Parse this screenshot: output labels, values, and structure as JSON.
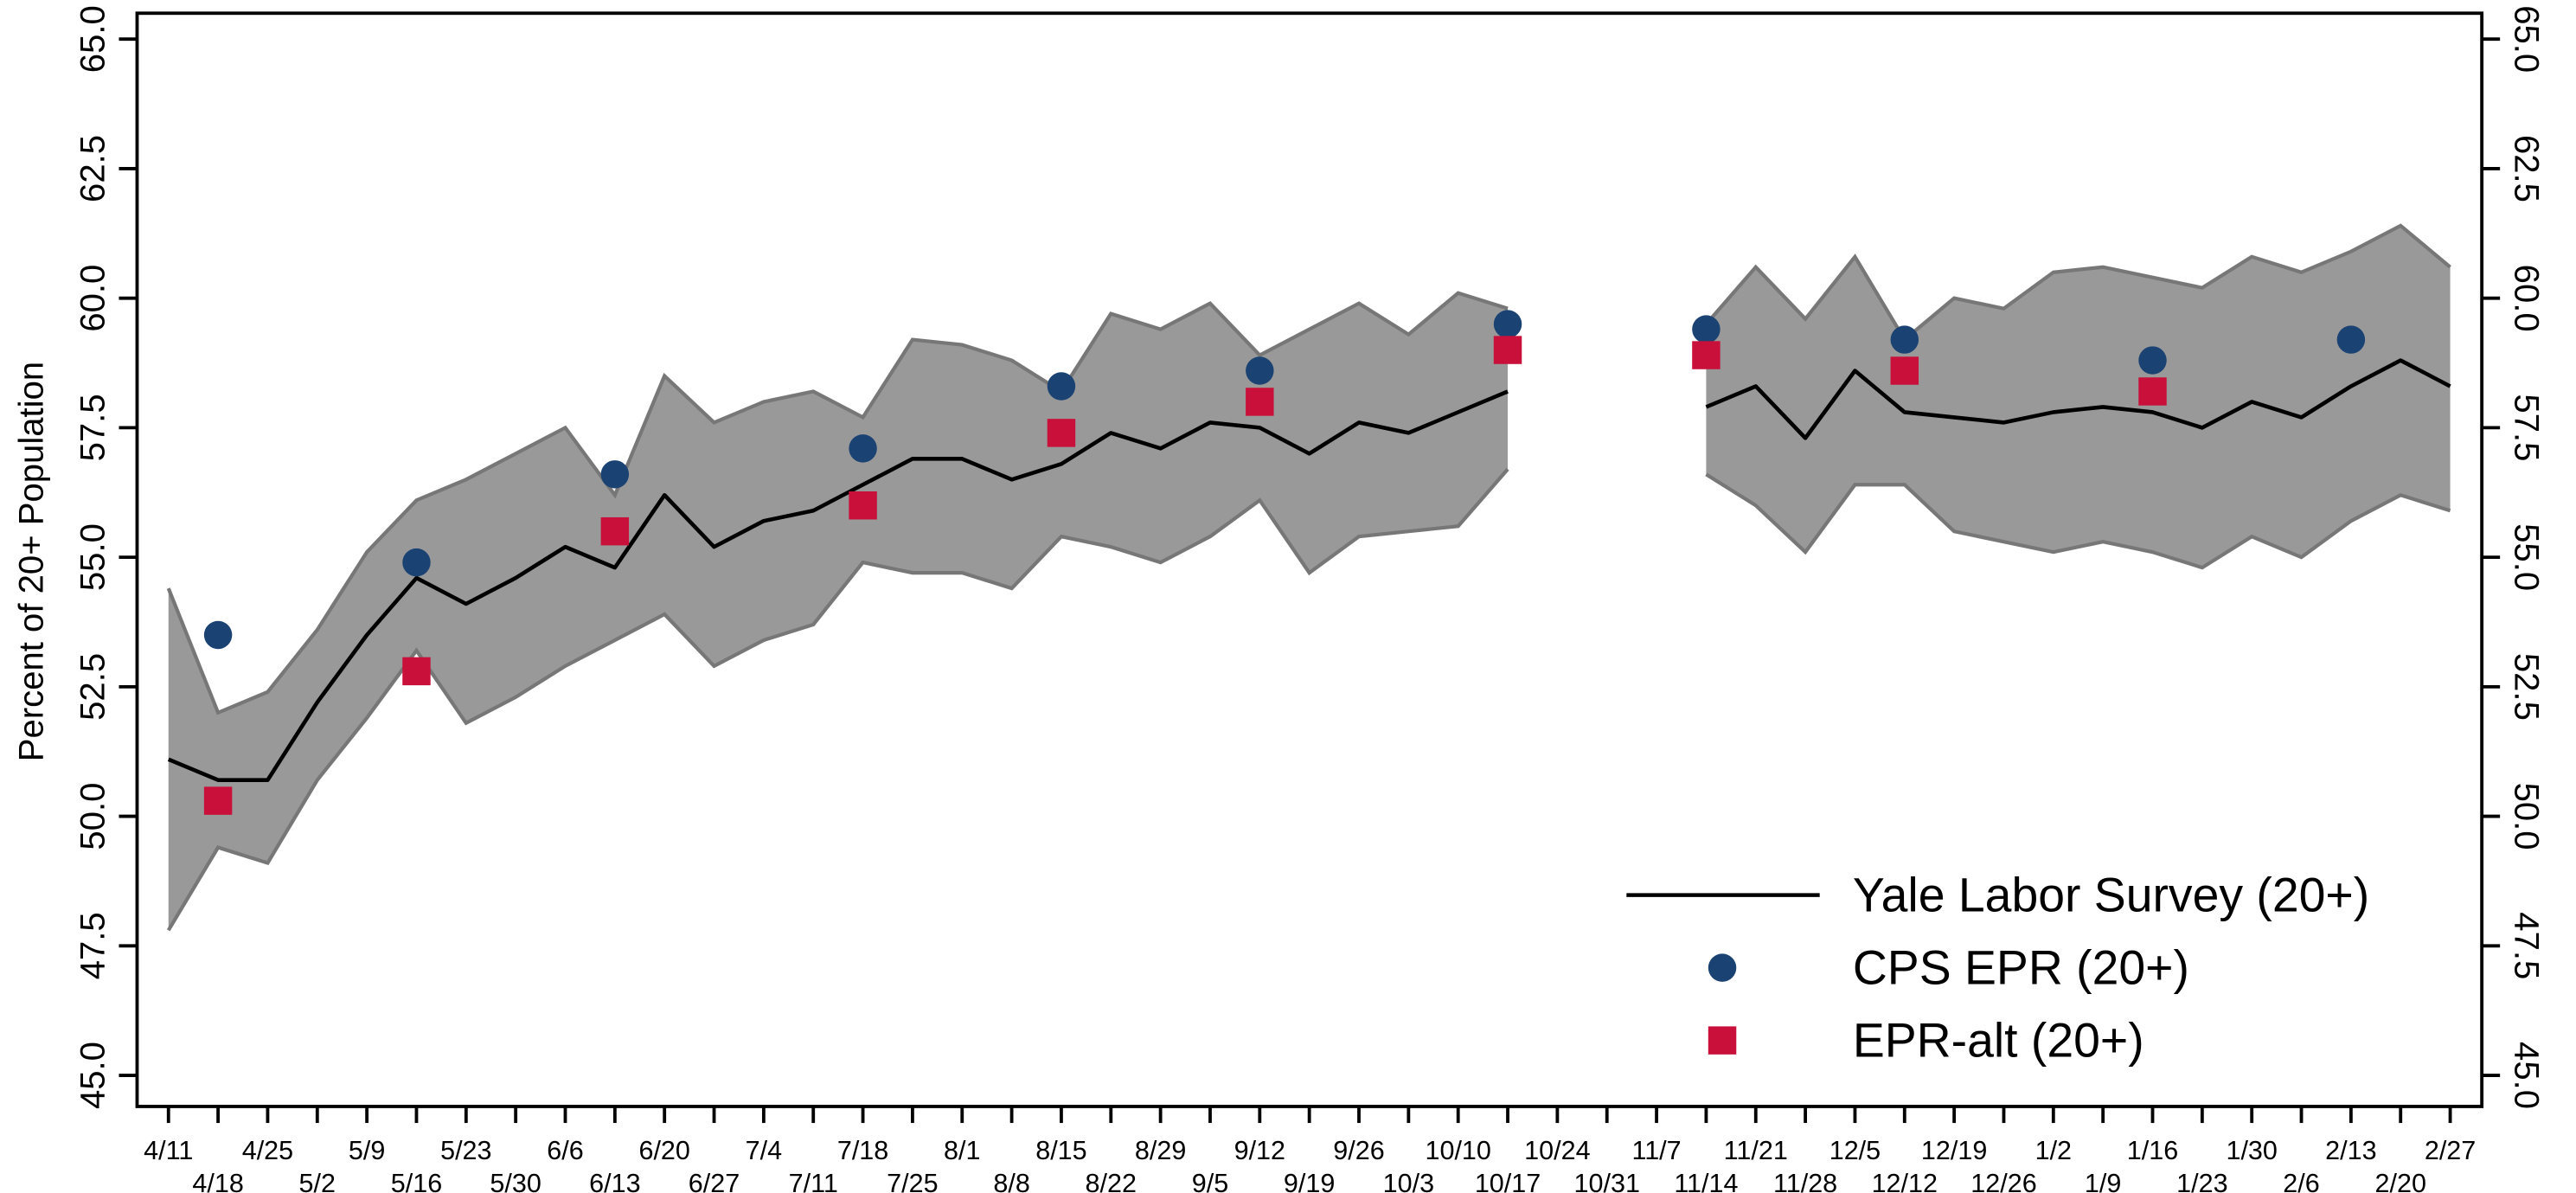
{
  "chart_data": {
    "type": "line",
    "y_label": "Percent of 20+ Population",
    "categories": [
      "4/11",
      "4/18",
      "4/25",
      "5/2",
      "5/9",
      "5/16",
      "5/23",
      "5/30",
      "6/6",
      "6/13",
      "6/20",
      "6/27",
      "7/4",
      "7/11",
      "7/18",
      "7/25",
      "8/1",
      "8/8",
      "8/15",
      "8/22",
      "8/29",
      "9/5",
      "9/12",
      "9/19",
      "9/26",
      "10/3",
      "10/10",
      "10/17",
      "10/24",
      "10/31",
      "11/7",
      "11/14",
      "11/21",
      "11/28",
      "12/5",
      "12/12",
      "12/19",
      "12/26",
      "1/2",
      "1/9",
      "1/16",
      "1/23",
      "1/30",
      "2/6",
      "2/13",
      "2/20",
      "2/27"
    ],
    "band": {
      "color": "#999999",
      "edge_color": "#777777",
      "upper": [
        54.4,
        52.0,
        52.4,
        53.6,
        55.1,
        56.1,
        56.5,
        57.0,
        57.5,
        56.2,
        58.5,
        57.6,
        58.0,
        58.2,
        57.7,
        59.2,
        59.1,
        58.8,
        58.2,
        59.7,
        59.4,
        59.9,
        58.9,
        59.4,
        59.9,
        59.3,
        60.1,
        59.8,
        null,
        null,
        null,
        59.5,
        60.6,
        59.6,
        60.8,
        59.2,
        60.0,
        59.8,
        60.5,
        60.6,
        60.4,
        60.2,
        60.8,
        60.5,
        60.9,
        61.4,
        60.6
      ],
      "lower": [
        47.8,
        49.4,
        49.1,
        50.7,
        51.9,
        53.2,
        51.8,
        52.3,
        52.9,
        53.4,
        53.9,
        52.9,
        53.4,
        53.7,
        54.9,
        54.7,
        54.7,
        54.4,
        55.4,
        55.2,
        54.9,
        55.4,
        56.1,
        54.7,
        55.4,
        55.5,
        55.6,
        56.7,
        null,
        null,
        null,
        56.6,
        56.0,
        55.1,
        56.4,
        56.4,
        55.5,
        55.3,
        55.1,
        55.3,
        55.1,
        54.8,
        55.4,
        55.0,
        55.7,
        56.2,
        55.9
      ]
    },
    "series": [
      {
        "name": "Yale Labor Survey (20+)",
        "color": "#000000",
        "marker": "line",
        "values": [
          51.1,
          50.7,
          50.7,
          52.2,
          53.5,
          54.6,
          54.1,
          54.6,
          55.2,
          54.8,
          56.2,
          55.2,
          55.7,
          55.9,
          56.4,
          56.9,
          56.9,
          56.5,
          56.8,
          57.4,
          57.1,
          57.6,
          57.5,
          57.0,
          57.6,
          57.4,
          57.8,
          58.2,
          null,
          null,
          null,
          57.9,
          58.3,
          57.3,
          58.6,
          57.8,
          57.7,
          57.6,
          57.8,
          57.9,
          57.8,
          57.5,
          58.0,
          57.7,
          58.3,
          58.8,
          58.3
        ]
      },
      {
        "name": "CPS EPR (20+)",
        "color": "#1a4272",
        "marker": "circle",
        "values": [
          null,
          53.5,
          null,
          null,
          null,
          54.9,
          null,
          null,
          null,
          56.6,
          null,
          null,
          null,
          null,
          57.1,
          null,
          null,
          null,
          58.3,
          null,
          null,
          null,
          58.6,
          null,
          null,
          null,
          null,
          59.5,
          null,
          null,
          null,
          59.4,
          null,
          null,
          null,
          59.2,
          null,
          null,
          null,
          null,
          58.8,
          null,
          null,
          null,
          59.2,
          null,
          null
        ]
      },
      {
        "name": "EPR-alt (20+)",
        "color": "#c8103a",
        "marker": "square",
        "values": [
          null,
          50.3,
          null,
          null,
          null,
          52.8,
          null,
          null,
          null,
          55.5,
          null,
          null,
          null,
          null,
          56.0,
          null,
          null,
          null,
          57.4,
          null,
          null,
          null,
          58.0,
          null,
          null,
          null,
          null,
          59.0,
          null,
          null,
          null,
          58.9,
          null,
          null,
          null,
          58.6,
          null,
          null,
          null,
          null,
          58.2,
          null,
          null,
          null,
          null,
          null,
          null
        ]
      }
    ],
    "ylim": [
      44.4,
      65.5
    ],
    "yticks": [
      {
        "value": 45,
        "label": "45.0"
      },
      47.5,
      {
        "value": 50,
        "label": "50.0"
      },
      52.5,
      {
        "value": 55,
        "label": "55.0"
      },
      57.5,
      {
        "value": 60,
        "label": "60.0"
      },
      62.5,
      {
        "value": 65,
        "label": "65.0"
      }
    ],
    "right_axis": true,
    "grid": false,
    "legend_position": "lower right"
  }
}
